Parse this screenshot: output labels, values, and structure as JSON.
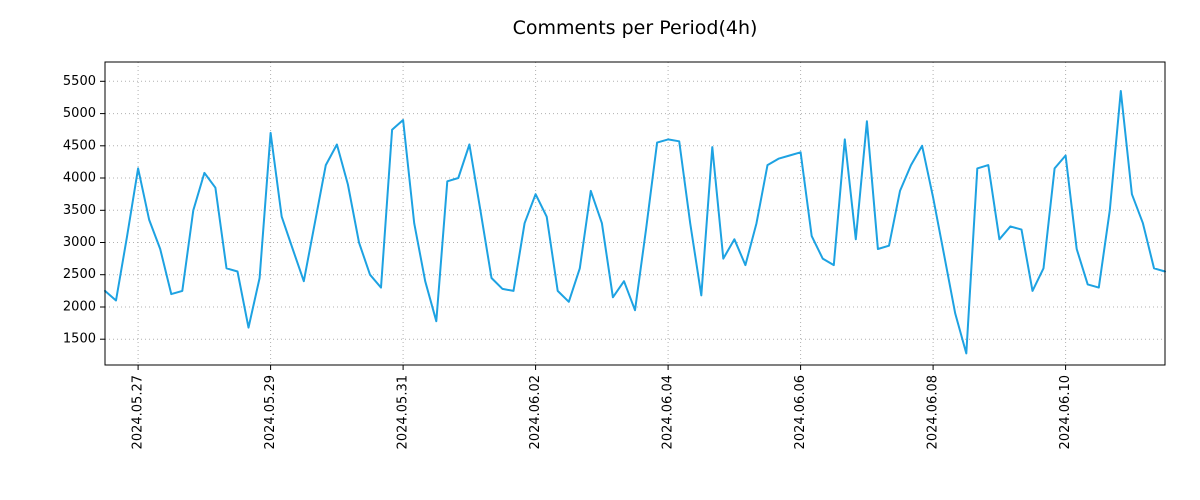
{
  "chart_data": {
    "type": "line",
    "title": "Comments per Period(4h)",
    "xlabel": "",
    "ylabel": "",
    "legend": "none",
    "grid": true,
    "grid_style": "dotted",
    "line_color": "#1da2e2",
    "background_color": "#ffffff",
    "ylim": [
      1100,
      5800
    ],
    "yticks": [
      1500,
      2000,
      2500,
      3000,
      3500,
      4000,
      4500,
      5000,
      5500
    ],
    "xtick_labels": [
      "2024.05.27",
      "2024.05.29",
      "2024.05.31",
      "2024.06.02",
      "2024.06.04",
      "2024.06.06",
      "2024.06.08",
      "2024.06.10"
    ],
    "xtick_indices": [
      3,
      15,
      27,
      39,
      51,
      63,
      75,
      87
    ],
    "points_per_day": 6,
    "values": [
      2250,
      2100,
      3100,
      4150,
      3350,
      2900,
      2200,
      2250,
      3500,
      4080,
      3850,
      2600,
      2550,
      1680,
      2450,
      4700,
      3400,
      2900,
      2400,
      3300,
      4200,
      4520,
      3900,
      3000,
      2500,
      2300,
      4750,
      4900,
      3300,
      2400,
      1780,
      3950,
      4000,
      4520,
      3500,
      2450,
      2280,
      2250,
      3300,
      3750,
      3400,
      2250,
      2080,
      2600,
      3800,
      3300,
      2150,
      2400,
      1950,
      3200,
      4550,
      4600,
      4570,
      3300,
      2180,
      4480,
      2750,
      3050,
      2650,
      3300,
      4200,
      4300,
      4350,
      4400,
      3100,
      2750,
      2650,
      4600,
      3050,
      4880,
      2900,
      2950,
      3800,
      4200,
      4500,
      3700,
      2800,
      1900,
      1280,
      4150,
      4200,
      3050,
      3250,
      3200,
      2250,
      2600,
      4150,
      4350,
      2900,
      2350,
      2300,
      3500,
      5350,
      3750,
      3300,
      2600,
      2550
    ]
  }
}
